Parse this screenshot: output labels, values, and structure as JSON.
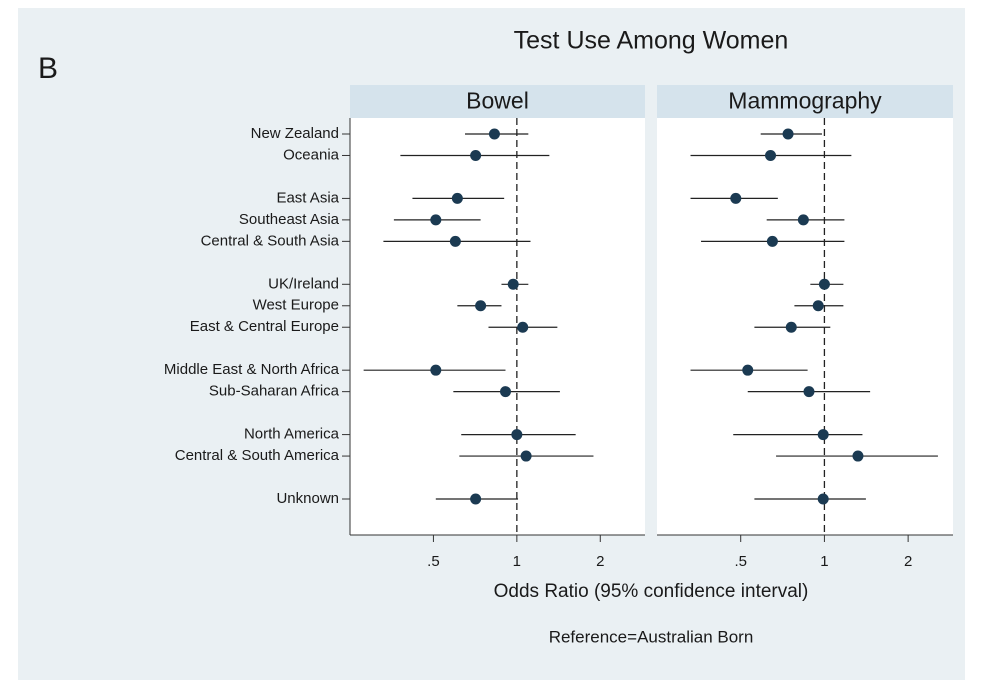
{
  "chart_data": {
    "type": "forest",
    "panel_letter": "B",
    "title": "Test Use Among Women",
    "categories": [
      "New Zealand",
      "Oceania",
      null,
      "East Asia",
      "Southeast Asia",
      "Central & South Asia",
      null,
      "UK/Ireland",
      "West Europe",
      "East  & Central Europe",
      null,
      "Middle East & North Africa",
      "Sub-Saharan Africa",
      null,
      "North America",
      "Central & South America",
      null,
      "Unknown"
    ],
    "panels": [
      {
        "name": "Bowel",
        "color": "#1b3a52",
        "values": [
          0.83,
          0.71,
          null,
          0.61,
          0.51,
          0.6,
          null,
          0.97,
          0.74,
          1.05,
          null,
          0.51,
          0.91,
          null,
          1.0,
          1.08,
          null,
          0.71
        ],
        "lower": [
          0.65,
          0.38,
          null,
          0.42,
          0.36,
          0.33,
          null,
          0.88,
          0.61,
          0.79,
          null,
          0.28,
          0.59,
          null,
          0.63,
          0.62,
          null,
          0.51
        ],
        "upper": [
          1.1,
          1.31,
          null,
          0.9,
          0.74,
          1.12,
          null,
          1.1,
          0.88,
          1.4,
          null,
          0.91,
          1.43,
          null,
          1.63,
          1.89,
          null,
          1.01
        ]
      },
      {
        "name": "Mammography",
        "color": "#1b3a52",
        "values": [
          0.74,
          0.64,
          null,
          0.48,
          0.84,
          0.65,
          null,
          1.0,
          0.95,
          0.76,
          null,
          0.53,
          0.88,
          null,
          0.99,
          1.32,
          null,
          0.99
        ],
        "lower": [
          0.59,
          0.33,
          null,
          0.33,
          0.62,
          0.36,
          null,
          0.89,
          0.78,
          0.56,
          null,
          0.33,
          0.53,
          null,
          0.47,
          0.67,
          null,
          0.56
        ],
        "upper": [
          0.98,
          1.25,
          null,
          0.68,
          1.18,
          1.18,
          null,
          1.17,
          1.17,
          1.05,
          null,
          0.87,
          1.46,
          null,
          1.37,
          2.56,
          null,
          1.41
        ]
      }
    ],
    "xscale": "log",
    "xlim": [
      0.25,
      2.9
    ],
    "xticks": [
      {
        "value": 0.5,
        "label": ".5"
      },
      1,
      2
    ],
    "reference_line": 1,
    "x_label": "Odds Ratio (95% confidence interval)",
    "note": "Reference=Australian Born"
  }
}
